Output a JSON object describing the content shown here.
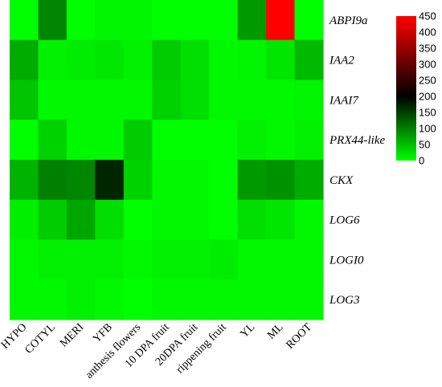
{
  "chart_data": {
    "type": "heatmap",
    "rows": [
      "ABPI9a",
      "IAA2",
      "IAAI7",
      "PRX44-like",
      "CKX",
      "LOG6",
      "LOGI0",
      "LOG3"
    ],
    "columns": [
      "HYPO",
      "COTYL",
      "MERI",
      "YFB",
      "anthesis flowers",
      "10 DPA fruit",
      "20DPA fruit",
      "rippening fruit",
      "YL",
      "ML",
      "ROOT"
    ],
    "values": [
      [
        0,
        95,
        0,
        8,
        8,
        0,
        0,
        0,
        80,
        450,
        0
      ],
      [
        65,
        10,
        15,
        18,
        10,
        40,
        25,
        5,
        8,
        20,
        55
      ],
      [
        45,
        5,
        5,
        5,
        5,
        35,
        25,
        5,
        5,
        5,
        8
      ],
      [
        0,
        35,
        5,
        5,
        40,
        0,
        0,
        0,
        10,
        5,
        10
      ],
      [
        60,
        100,
        95,
        170,
        35,
        5,
        5,
        0,
        80,
        85,
        65
      ],
      [
        12,
        40,
        70,
        25,
        0,
        5,
        5,
        0,
        25,
        20,
        5
      ],
      [
        5,
        10,
        10,
        10,
        5,
        10,
        10,
        15,
        5,
        5,
        5
      ],
      [
        5,
        5,
        10,
        5,
        0,
        5,
        5,
        5,
        5,
        5,
        5
      ]
    ],
    "colorbar": {
      "ticks": [
        "450",
        "400",
        "350",
        "300",
        "250",
        "200",
        "150",
        "100",
        "50",
        "0"
      ],
      "min": 0,
      "max": 450,
      "colors": [
        "#00ff00",
        "#000000",
        "#ff0000"
      ]
    }
  }
}
